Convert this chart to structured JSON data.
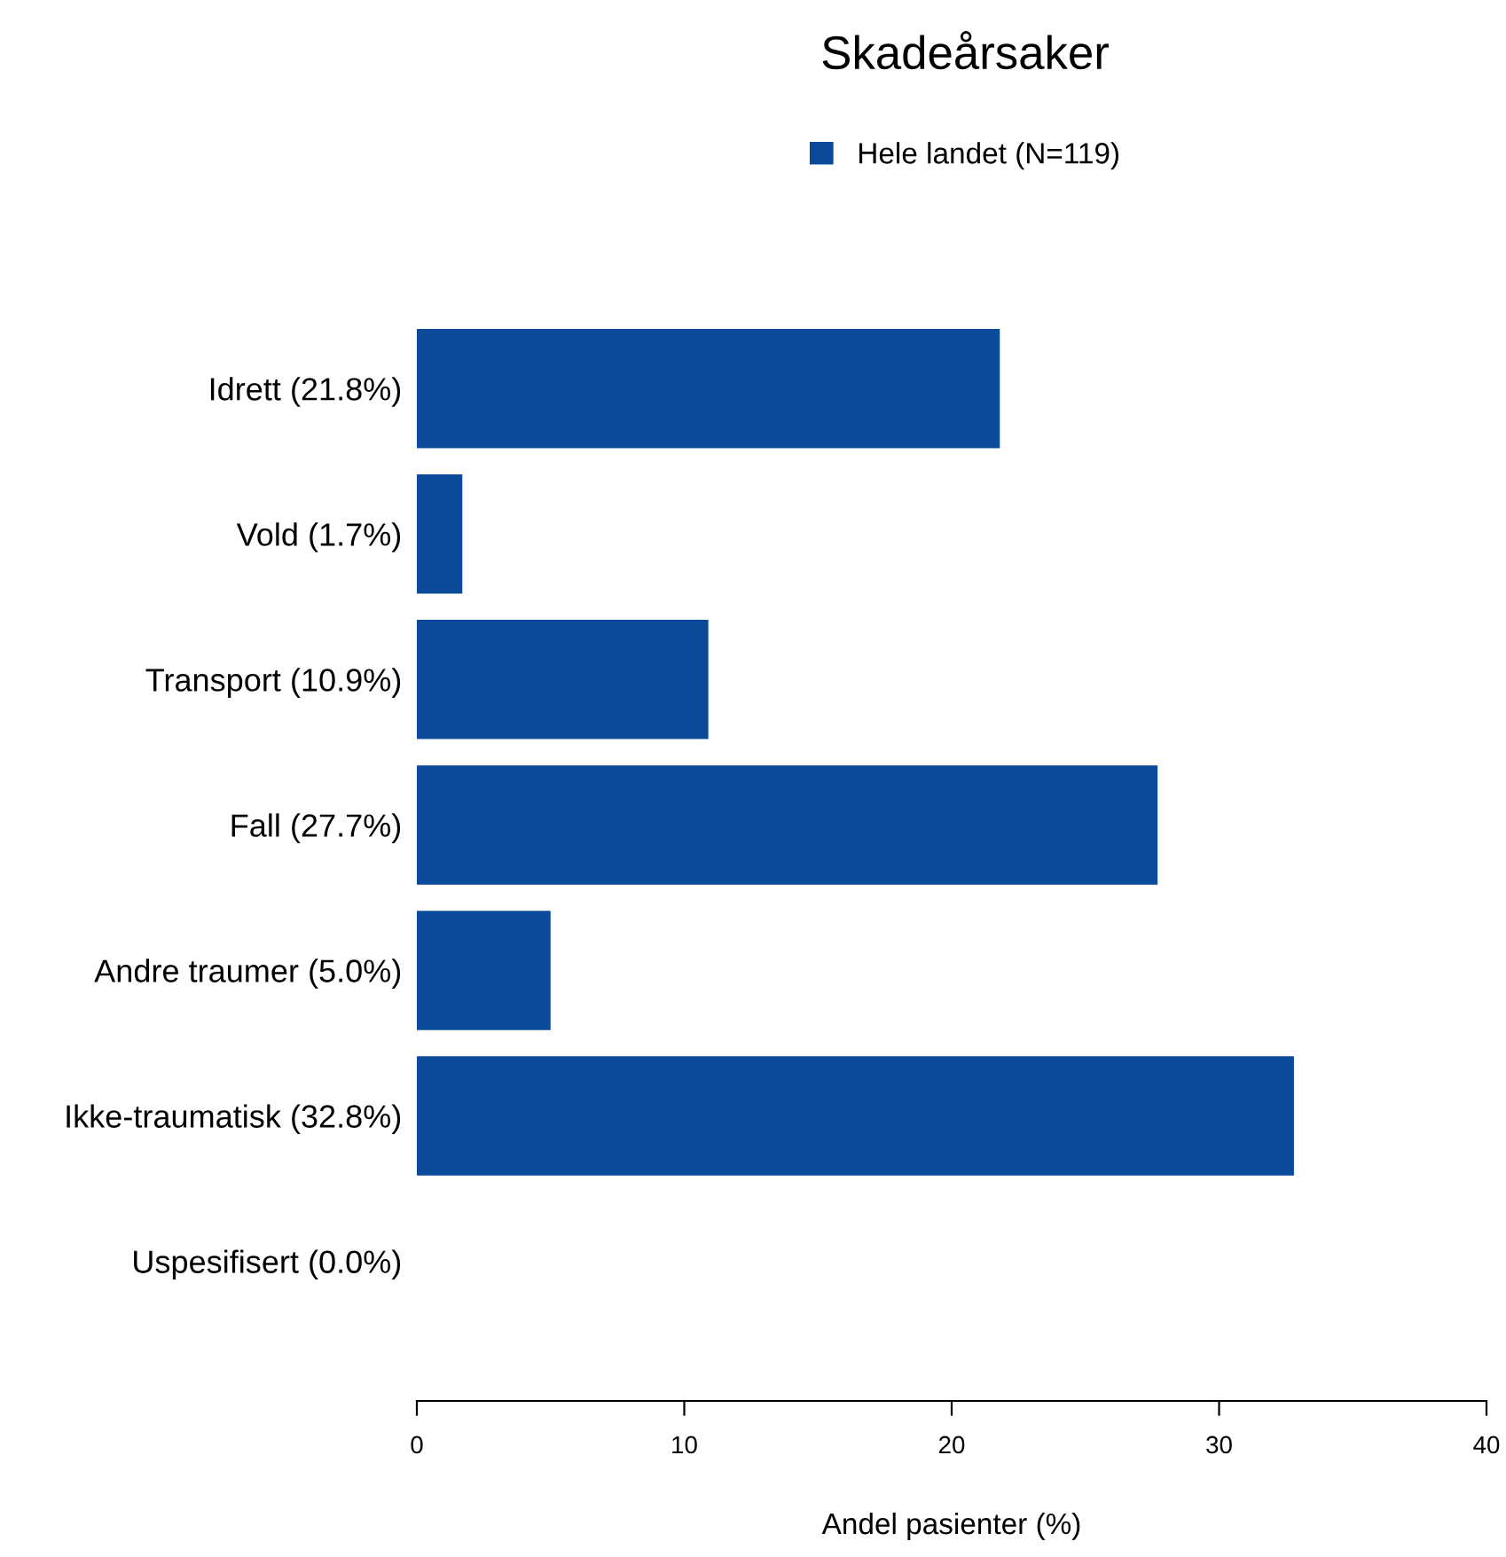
{
  "chart_data": {
    "type": "bar",
    "title": "Skadeårsaker",
    "xlabel": "Andel pasienter (%)",
    "orientation": "horizontal",
    "categories": [
      "Idrett (21.8%)",
      "Vold (1.7%)",
      "Transport (10.9%)",
      "Fall (27.7%)",
      "Andre traumer (5.0%)",
      "Ikke-traumatisk (32.8%)",
      "Uspesifisert (0.0%)"
    ],
    "series": [
      {
        "name": "Hele landet (N=119)",
        "color": "#0b4a99",
        "values": [
          21.8,
          1.7,
          10.9,
          27.7,
          5.0,
          32.8,
          0.0
        ]
      }
    ],
    "xlim": [
      0,
      40
    ],
    "xticks": [
      0,
      10,
      20,
      30,
      40
    ],
    "grid": false,
    "legend": "top"
  }
}
